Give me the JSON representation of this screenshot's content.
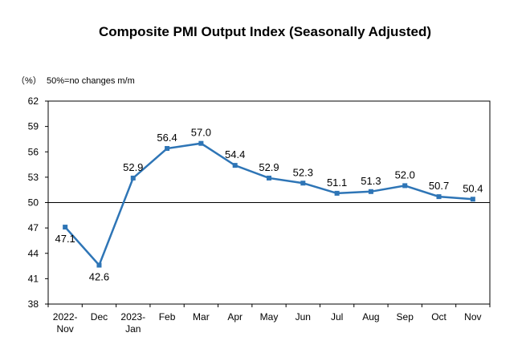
{
  "chart_data": {
    "type": "line",
    "title": "Composite PMI Output Index (Seasonally Adjusted)",
    "unit_label": "（%）",
    "note": "50%=no changes m/m",
    "categories": [
      [
        "2022-",
        "Nov"
      ],
      [
        "Dec"
      ],
      [
        "2023-",
        "Jan"
      ],
      [
        "Feb"
      ],
      [
        "Mar"
      ],
      [
        "Apr"
      ],
      [
        "May"
      ],
      [
        "Jun"
      ],
      [
        "Jul"
      ],
      [
        "Aug"
      ],
      [
        "Sep"
      ],
      [
        "Oct"
      ],
      [
        "Nov"
      ]
    ],
    "values": [
      47.1,
      42.6,
      52.9,
      56.4,
      57.0,
      54.4,
      52.9,
      52.3,
      51.1,
      51.3,
      52.0,
      50.7,
      50.4
    ],
    "value_labels": [
      "47.1",
      "42.6",
      "52.9",
      "56.4",
      "57.0",
      "54.4",
      "52.9",
      "52.3",
      "51.1",
      "51.3",
      "52.0",
      "50.7",
      "50.4"
    ],
    "ylim": [
      38,
      62
    ],
    "yticks": [
      38,
      41,
      44,
      47,
      50,
      53,
      56,
      59,
      62
    ],
    "baseline": 50,
    "grid": false,
    "legend": "none",
    "line_color": "#2E75B6",
    "marker_color": "#2E75B6"
  }
}
